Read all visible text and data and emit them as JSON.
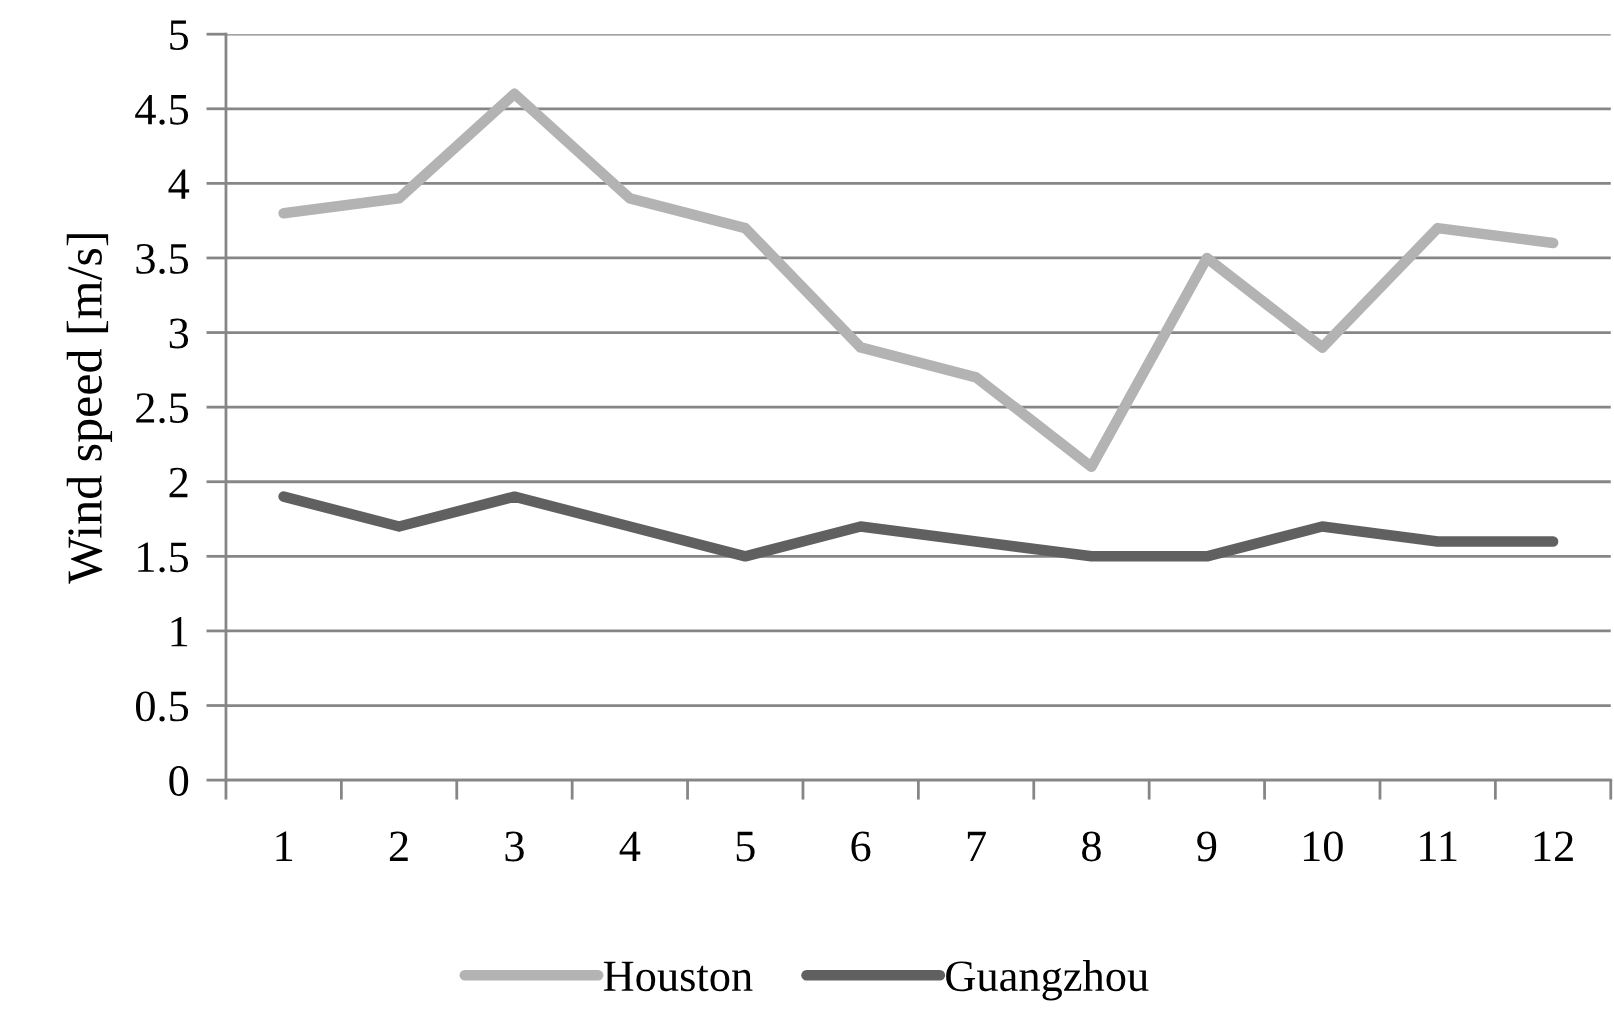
{
  "chart_data": {
    "type": "line",
    "ylabel": "Wind speed [m/s]",
    "categories": [
      "1",
      "2",
      "3",
      "4",
      "5",
      "6",
      "7",
      "8",
      "9",
      "10",
      "11",
      "12"
    ],
    "series": [
      {
        "name": "Houston",
        "color": "#b3b3b3",
        "values": [
          3.8,
          3.9,
          4.6,
          3.9,
          3.7,
          2.9,
          2.7,
          2.1,
          3.5,
          2.9,
          3.7,
          3.6
        ]
      },
      {
        "name": "Guangzhou",
        "color": "#606060",
        "values": [
          1.9,
          1.7,
          1.9,
          1.7,
          1.5,
          1.7,
          1.6,
          1.5,
          1.5,
          1.7,
          1.6,
          1.6
        ]
      }
    ],
    "ylim": [
      0,
      5
    ],
    "yticks": [
      0,
      0.5,
      1,
      1.5,
      2,
      2.5,
      3,
      3.5,
      4,
      4.5,
      5
    ],
    "grid": "y",
    "legend": "bottom",
    "marker": "none",
    "line_style": "solid"
  }
}
